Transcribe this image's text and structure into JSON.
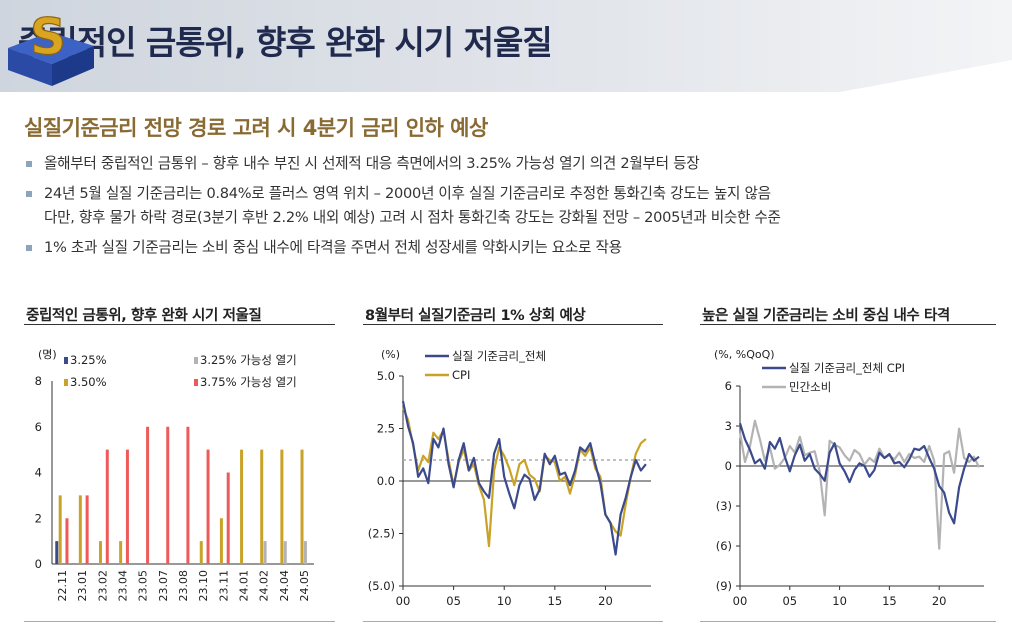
{
  "header": {
    "title": "중립적인 금통위, 향후 완화 시기 저울질"
  },
  "subtitle": "실질기준금리 전망 경로 고려 시 4분기 금리 인하 예상",
  "bullets": [
    "올해부터 중립적인 금통위 – 향후 내수 부진 시 선제적 대응 측면에서의 3.25% 가능성 열기 의견 2월부터 등장",
    "24년 5월 실질 기준금리는 0.84%로 플러스 영역 위치 – 2000년 이후 실질 기준금리로 추정한 통화긴축 강도는 높지 않음",
    "다만, 향후 물가 하락 경로(3분기 후반 2.2% 내외 예상) 고려 시 점차 통화긴축 강도는 강화될 전망 – 2005년과 비슷한 수준",
    "1% 초과 실질 기준금리는 소비 중심 내수에 타격을 주면서 전체 성장세를 약화시키는 요소로 작용"
  ],
  "chart_data": [
    {
      "type": "bar",
      "title": "중립적인 금통위, 향후 완화 시기 저울질",
      "ylabel": "(명)",
      "ylim": [
        0,
        8
      ],
      "yticks": [
        "0",
        "2",
        "4",
        "6",
        "8"
      ],
      "categories": [
        "22.11",
        "23.01",
        "23.02",
        "23.04",
        "23.05",
        "23.07",
        "23.08",
        "23.10",
        "23.11",
        "24.01",
        "24.02",
        "24.04",
        "24.05"
      ],
      "series": [
        {
          "name": "3.25%",
          "color": "#3a4a8c",
          "values": [
            1,
            0,
            0,
            0,
            0,
            0,
            0,
            0,
            0,
            0,
            0,
            0,
            0
          ]
        },
        {
          "name": "3.50%",
          "color": "#c9a227",
          "values": [
            3,
            3,
            1,
            1,
            0,
            0,
            0,
            1,
            2,
            5,
            5,
            5,
            5
          ]
        },
        {
          "name": "3.25% 가능성 열기",
          "color": "#b3b3b3",
          "values": [
            0,
            0,
            0,
            0,
            0,
            0,
            0,
            0,
            0,
            0,
            1,
            1,
            1
          ]
        },
        {
          "name": "3.75% 가능성 열기",
          "color": "#ee5a5a",
          "values": [
            2,
            3,
            5,
            5,
            6,
            6,
            6,
            5,
            4,
            0,
            0,
            0,
            0
          ]
        }
      ],
      "legend": "top"
    },
    {
      "type": "line",
      "title": "8월부터 실질기준금리 1% 상회 예상",
      "ylabel": "(%)",
      "ylim": [
        -5,
        5
      ],
      "yticks": [
        "(5.0)",
        "(2.5)",
        "0.0",
        "2.5",
        "5.0"
      ],
      "xticks": [
        "00",
        "05",
        "10",
        "15",
        "20"
      ],
      "xlim": [
        0,
        24.5
      ],
      "reference_line": 1.0,
      "series": [
        {
          "name": "실질 기준금리_전체",
          "color": "#3a4a8c",
          "x": [
            0,
            0.5,
            1,
            1.5,
            2,
            2.5,
            3,
            3.5,
            4,
            4.5,
            5,
            5.5,
            6,
            6.5,
            7,
            7.5,
            8,
            8.5,
            9,
            9.5,
            10,
            10.5,
            11,
            11.5,
            12,
            12.5,
            13,
            13.5,
            14,
            14.5,
            15,
            15.5,
            16,
            16.5,
            17,
            17.5,
            18,
            18.5,
            19,
            19.5,
            20,
            20.5,
            21,
            21.5,
            22,
            22.5,
            23,
            23.5,
            24
          ],
          "y": [
            3.8,
            2.6,
            1.8,
            0.2,
            0.6,
            -0.1,
            2.0,
            1.6,
            2.5,
            0.8,
            -0.3,
            1.0,
            1.8,
            0.5,
            1.1,
            -0.1,
            -0.5,
            -0.8,
            1.3,
            2.0,
            0.2,
            -0.6,
            -1.3,
            -0.2,
            0.3,
            0.1,
            -0.9,
            -0.4,
            1.3,
            0.8,
            1.2,
            0.3,
            0.4,
            -0.2,
            0.5,
            1.6,
            1.4,
            1.8,
            0.8,
            -0.1,
            -1.6,
            -2.0,
            -3.5,
            -1.6,
            -0.8,
            0.2,
            1.0,
            0.5,
            0.8
          ]
        },
        {
          "name": "CPI",
          "color": "#c9a227",
          "x": [
            0,
            0.5,
            1,
            1.5,
            2,
            2.5,
            3,
            3.5,
            4,
            4.5,
            5,
            5.5,
            6,
            6.5,
            7,
            7.5,
            8,
            8.5,
            9,
            9.5,
            10,
            10.5,
            11,
            11.5,
            12,
            12.5,
            13,
            13.5,
            14,
            14.5,
            15,
            15.5,
            16,
            16.5,
            17,
            17.5,
            18,
            18.5,
            19,
            19.5,
            20,
            20.5,
            21,
            21.5,
            22,
            22.5,
            23,
            23.5,
            24
          ],
          "y": [
            3.5,
            2.9,
            1.7,
            0.5,
            1.2,
            0.9,
            2.3,
            2.0,
            2.4,
            1.0,
            -0.2,
            0.9,
            1.5,
            0.5,
            0.8,
            -0.2,
            -0.9,
            -3.1,
            0.5,
            1.6,
            1.2,
            0.6,
            -0.2,
            0.8,
            1.0,
            0.3,
            0.1,
            -0.5,
            1.2,
            1.0,
            0.9,
            0.0,
            0.2,
            -0.6,
            0.3,
            1.5,
            1.2,
            1.6,
            0.6,
            0.2,
            -1.6,
            -2.0,
            -2.4,
            -2.6,
            -1.1,
            0.2,
            1.3,
            1.8,
            2.0
          ]
        }
      ],
      "legend": "top-right"
    },
    {
      "type": "line",
      "title": "높은 실질 기준금리는 소비 중심 내수 타격",
      "ylabel": "(%, %QoQ)",
      "ylim": [
        -9,
        6
      ],
      "yticks": [
        "(9)",
        "(6)",
        "(3)",
        "0",
        "3",
        "6"
      ],
      "xticks": [
        "00",
        "05",
        "10",
        "15",
        "20"
      ],
      "xlim": [
        0,
        24.5
      ],
      "series": [
        {
          "name": "실질 기준금리_전체 CPI",
          "color": "#3a4a8c",
          "x": [
            0,
            0.5,
            1,
            1.5,
            2,
            2.5,
            3,
            3.5,
            4,
            4.5,
            5,
            5.5,
            6,
            6.5,
            7,
            7.5,
            8,
            8.5,
            9,
            9.5,
            10,
            10.5,
            11,
            11.5,
            12,
            12.5,
            13,
            13.5,
            14,
            14.5,
            15,
            15.5,
            16,
            16.5,
            17,
            17.5,
            18,
            18.5,
            19,
            19.5,
            20,
            20.5,
            21,
            21.5,
            22,
            22.5,
            23,
            23.5,
            24
          ],
          "y": [
            3.2,
            2.0,
            1.2,
            0.2,
            0.5,
            -0.2,
            1.8,
            1.3,
            2.1,
            0.7,
            -0.4,
            0.8,
            1.6,
            0.4,
            0.9,
            -0.2,
            -0.6,
            -1.1,
            1.0,
            1.7,
            0.2,
            -0.4,
            -1.2,
            -0.3,
            0.2,
            0.0,
            -0.8,
            -0.3,
            1.0,
            0.6,
            0.9,
            0.2,
            0.3,
            -0.1,
            0.5,
            1.3,
            1.2,
            1.5,
            0.6,
            -0.2,
            -1.5,
            -2.0,
            -3.5,
            -4.3,
            -1.6,
            -0.2,
            0.9,
            0.4,
            0.7
          ]
        },
        {
          "name": "민간소비",
          "color": "#b3b3b3",
          "x": [
            0,
            0.5,
            1,
            1.5,
            2,
            2.5,
            3,
            3.5,
            4,
            4.5,
            5,
            5.5,
            6,
            6.5,
            7,
            7.5,
            8,
            8.5,
            9,
            9.5,
            10,
            10.5,
            11,
            11.5,
            12,
            12.5,
            13,
            13.5,
            14,
            14.5,
            15,
            15.5,
            16,
            16.5,
            17,
            17.5,
            18,
            18.5,
            19,
            19.5,
            20,
            20.5,
            21,
            21.5,
            22,
            22.5,
            23,
            23.5,
            24
          ],
          "y": [
            2.5,
            0.3,
            1.5,
            3.4,
            2.0,
            0.4,
            1.4,
            -0.2,
            0.1,
            0.6,
            1.5,
            1.0,
            2.2,
            0.8,
            1.0,
            1.1,
            -0.4,
            -3.7,
            1.9,
            1.6,
            1.4,
            0.8,
            0.4,
            1.2,
            0.9,
            0.1,
            0.6,
            0.3,
            1.3,
            0.6,
            0.8,
            0.5,
            1.0,
            0.3,
            0.9,
            0.6,
            0.7,
            0.3,
            1.5,
            0.4,
            -6.2,
            0.9,
            1.1,
            -0.5,
            2.8,
            0.6,
            0.3,
            0.7,
            -0.1
          ]
        }
      ],
      "legend": "top-left"
    }
  ]
}
